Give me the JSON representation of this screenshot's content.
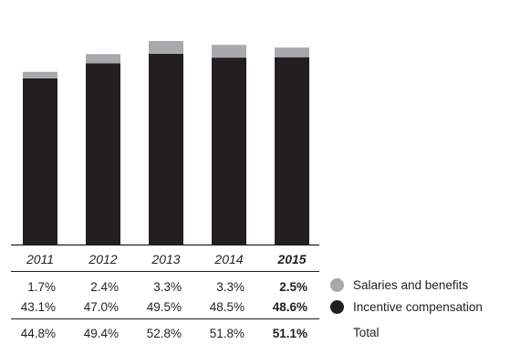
{
  "chart_data": {
    "type": "bar",
    "stacked": true,
    "categories": [
      "2011",
      "2012",
      "2013",
      "2014",
      "2015"
    ],
    "highlight_category": "2015",
    "series": [
      {
        "name": "Incentive compensation",
        "color": "#231f20",
        "values": [
          43.1,
          47.0,
          49.5,
          48.5,
          48.6
        ],
        "labels": [
          "43.1%",
          "47.0%",
          "49.5%",
          "48.5%",
          "48.6%"
        ]
      },
      {
        "name": "Salaries and benefits",
        "color": "#a7a9ac",
        "values": [
          1.7,
          2.4,
          3.3,
          3.3,
          2.5
        ],
        "labels": [
          "1.7%",
          "2.4%",
          "3.3%",
          "3.3%",
          "2.5%"
        ]
      }
    ],
    "totals": {
      "name": "Total",
      "values": [
        44.8,
        49.4,
        52.8,
        51.8,
        51.1
      ],
      "labels": [
        "44.8%",
        "49.4%",
        "52.8%",
        "51.8%",
        "51.1%"
      ]
    },
    "ylim": [
      0,
      53.5
    ],
    "grid": false,
    "legend": "right of value table"
  }
}
